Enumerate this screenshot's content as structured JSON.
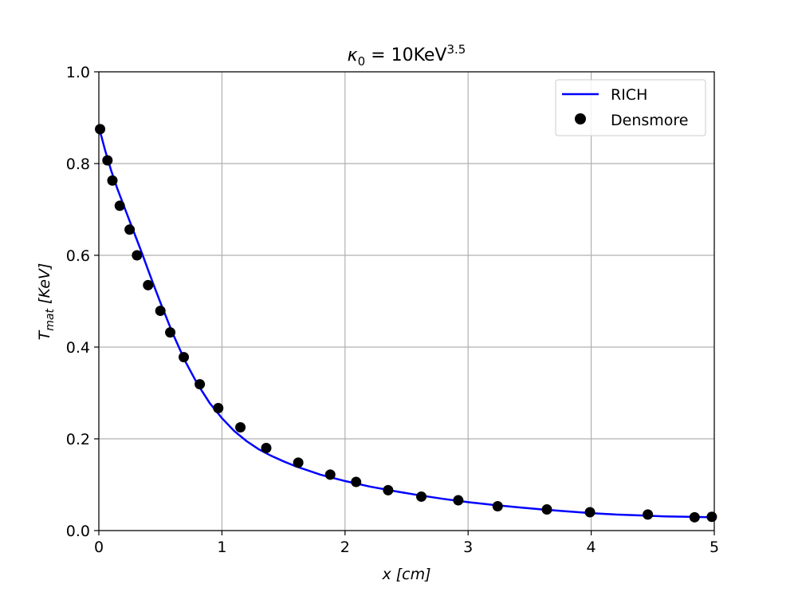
{
  "chart_data": {
    "type": "line",
    "title": {
      "main": "κ",
      "sub": "0",
      "rest": " = 10KeV",
      "sup": "3.5"
    },
    "xlabel": {
      "var": "x",
      "unit": " [cm]"
    },
    "ylabel": {
      "var": "T",
      "sub": "mat",
      "unit": " [KeV]"
    },
    "xlim": [
      0,
      5
    ],
    "ylim": [
      0,
      1.0
    ],
    "xticks": [
      0,
      1,
      2,
      3,
      4,
      5
    ],
    "xtick_labels": [
      "0",
      "1",
      "2",
      "3",
      "4",
      "5"
    ],
    "yticks": [
      0,
      0.2,
      0.4,
      0.6,
      0.8,
      1.0
    ],
    "ytick_labels": [
      "0.0",
      "0.2",
      "0.4",
      "0.6",
      "0.8",
      "1.0"
    ],
    "grid": true,
    "legend_position": "upper right",
    "series": [
      {
        "name": "RICH",
        "style": "line",
        "color": "#0000ff",
        "x": [
          0,
          0.02,
          0.05,
          0.1,
          0.15,
          0.2,
          0.25,
          0.3,
          0.35,
          0.4,
          0.45,
          0.5,
          0.6,
          0.7,
          0.8,
          0.9,
          1.0,
          1.1,
          1.2,
          1.3,
          1.4,
          1.5,
          1.6,
          1.8,
          2.0,
          2.2,
          2.4,
          2.6,
          2.8,
          3.0,
          3.2,
          3.4,
          3.6,
          3.8,
          4.0,
          4.2,
          4.4,
          4.6,
          4.8,
          5.0
        ],
        "y": [
          0.875,
          0.86,
          0.83,
          0.785,
          0.745,
          0.71,
          0.675,
          0.64,
          0.605,
          0.568,
          0.532,
          0.497,
          0.43,
          0.37,
          0.32,
          0.278,
          0.245,
          0.217,
          0.195,
          0.177,
          0.163,
          0.151,
          0.14,
          0.122,
          0.108,
          0.096,
          0.086,
          0.077,
          0.069,
          0.062,
          0.056,
          0.051,
          0.046,
          0.042,
          0.038,
          0.035,
          0.033,
          0.031,
          0.03,
          0.029
        ]
      },
      {
        "name": "Densmore",
        "style": "markers",
        "color": "#000000",
        "x": [
          0.01,
          0.07,
          0.11,
          0.17,
          0.25,
          0.31,
          0.4,
          0.5,
          0.58,
          0.69,
          0.82,
          0.97,
          1.15,
          1.36,
          1.62,
          1.88,
          2.09,
          2.35,
          2.62,
          2.92,
          3.24,
          3.64,
          3.99,
          4.46,
          4.84,
          4.98
        ],
        "y": [
          0.875,
          0.807,
          0.763,
          0.708,
          0.656,
          0.6,
          0.535,
          0.479,
          0.432,
          0.378,
          0.319,
          0.267,
          0.225,
          0.18,
          0.148,
          0.122,
          0.106,
          0.088,
          0.074,
          0.066,
          0.053,
          0.046,
          0.04,
          0.035,
          0.029,
          0.03
        ]
      }
    ]
  }
}
